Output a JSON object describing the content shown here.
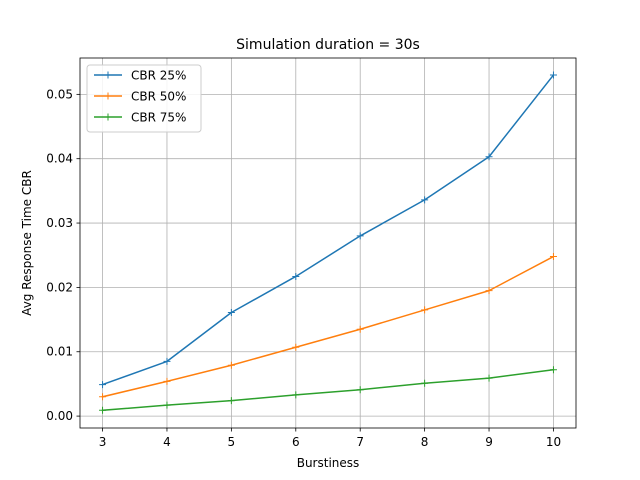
{
  "chart_data": {
    "type": "line",
    "title": "Simulation duration = 30s",
    "xlabel": "Burstiness",
    "ylabel": "Avg Response Time CBR",
    "x": [
      3,
      4,
      5,
      6,
      7,
      8,
      9,
      10
    ],
    "xlim": [
      2.65,
      10.35
    ],
    "ylim": [
      -0.00185,
      0.05565
    ],
    "xticks": [
      3,
      4,
      5,
      6,
      7,
      8,
      9,
      10
    ],
    "yticks": [
      0.0,
      0.01,
      0.02,
      0.03,
      0.04,
      0.05
    ],
    "ytick_labels": [
      "0.00",
      "0.01",
      "0.02",
      "0.03",
      "0.04",
      "0.05"
    ],
    "grid": true,
    "legend_position": "top-left",
    "marker": "+",
    "series": [
      {
        "name": "CBR 25%",
        "color": "#1f77b4",
        "values": [
          0.0049,
          0.0085,
          0.0161,
          0.0217,
          0.028,
          0.0336,
          0.0403,
          0.053
        ]
      },
      {
        "name": "CBR 50%",
        "color": "#ff7f0e",
        "values": [
          0.003,
          0.0054,
          0.0079,
          0.0107,
          0.0135,
          0.0165,
          0.0195,
          0.0248
        ]
      },
      {
        "name": "CBR 75%",
        "color": "#2ca02c",
        "values": [
          0.0009,
          0.0017,
          0.0024,
          0.0033,
          0.0041,
          0.0051,
          0.0059,
          0.0072
        ]
      }
    ]
  }
}
